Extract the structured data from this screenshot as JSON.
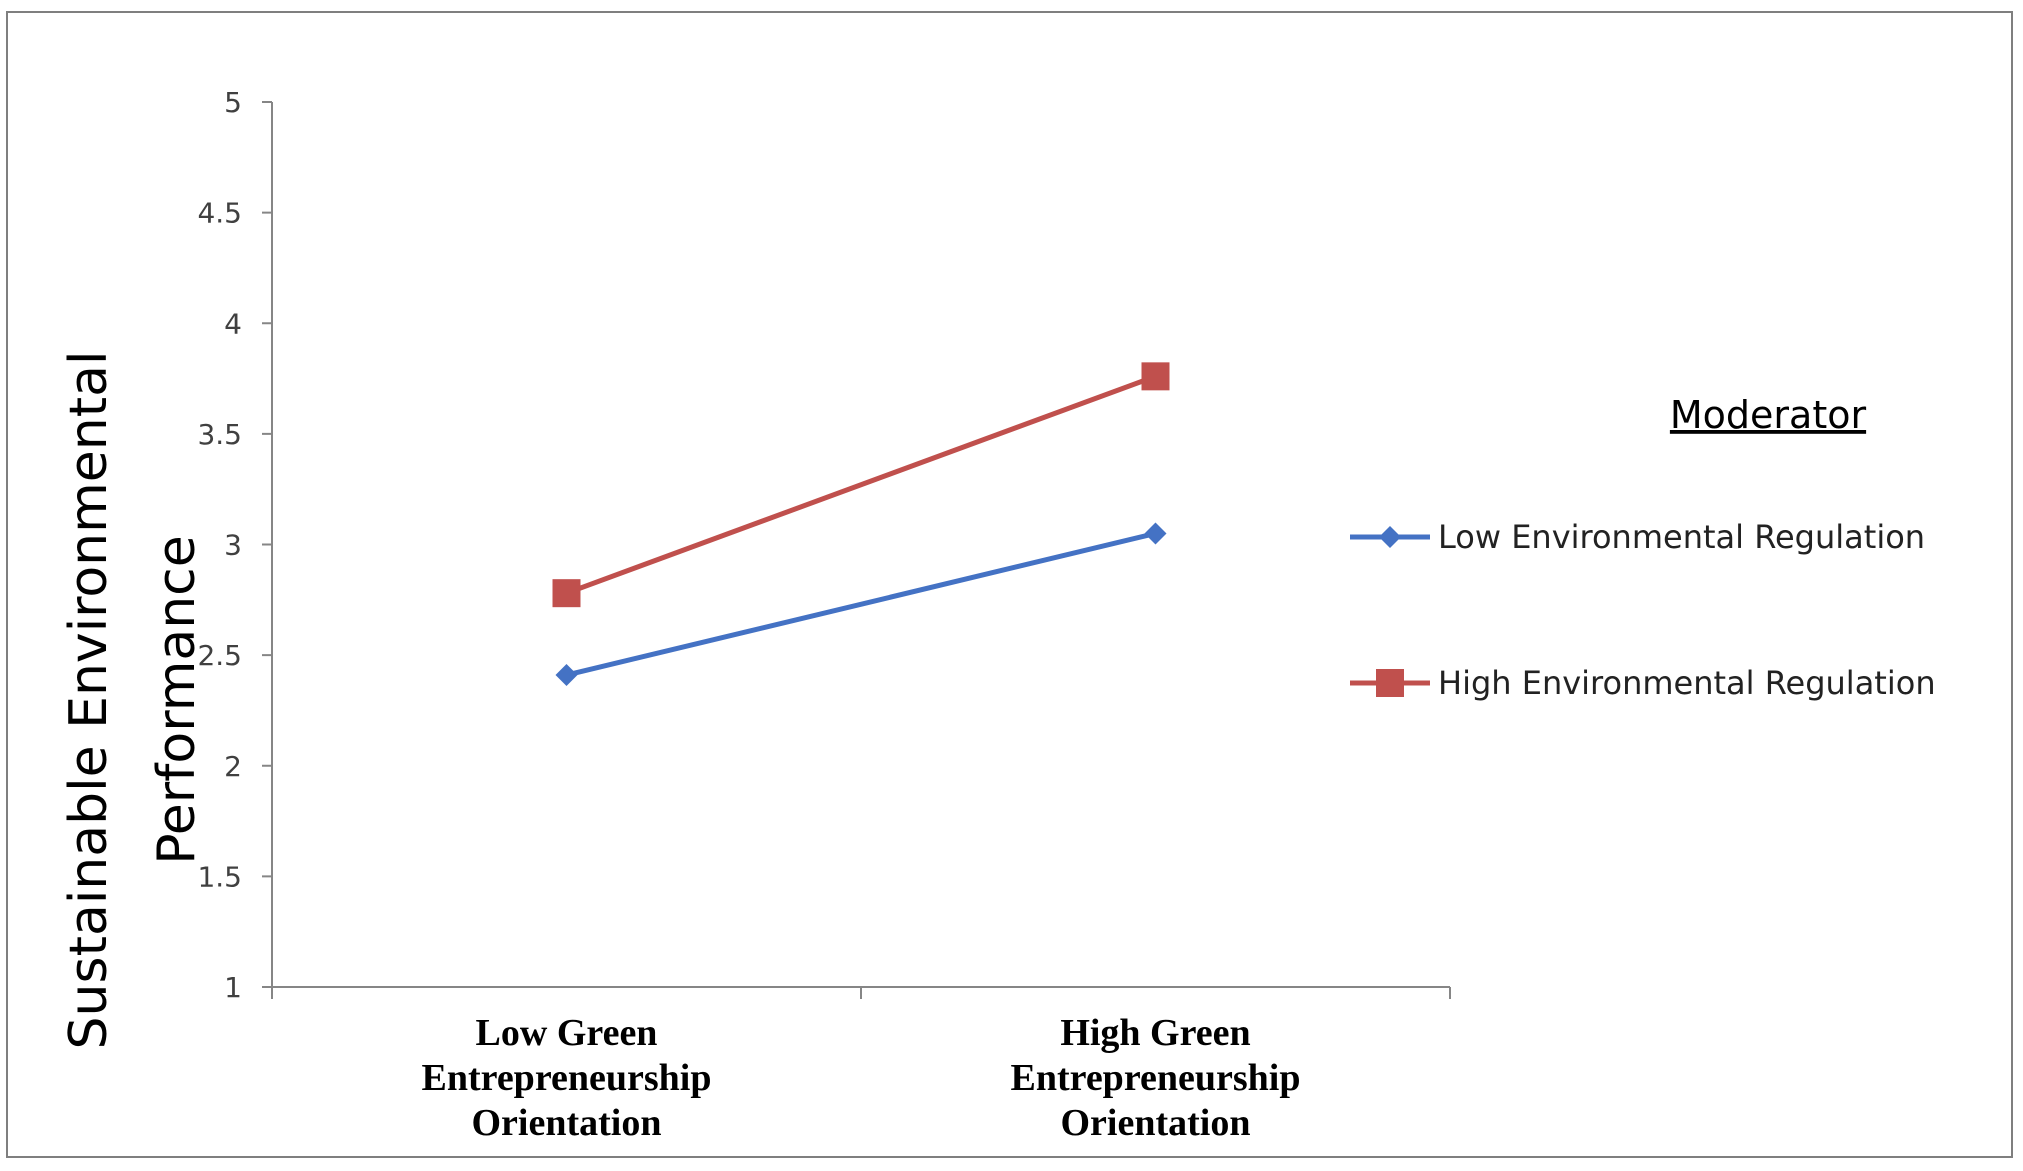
{
  "chart_data": {
    "type": "line",
    "title": "",
    "ylabel_lines": [
      "Sustainable Environmental",
      "Performance"
    ],
    "xlabel": "",
    "categories": [
      [
        "Low Green",
        "Entrepreneurship",
        "Orientation"
      ],
      [
        "High Green",
        "Entrepreneurship",
        "Orientation"
      ]
    ],
    "ylim": [
      1,
      5
    ],
    "yticks": [
      "1",
      "1.5",
      "2",
      "2.5",
      "3",
      "3.5",
      "4",
      "4.5",
      "5"
    ],
    "ytick_values": [
      1,
      1.5,
      2,
      2.5,
      3,
      3.5,
      4,
      4.5,
      5
    ],
    "legend_title": "Moderator",
    "legend_position": "right",
    "grid": false,
    "series": [
      {
        "name": "Low Environmental Regulation",
        "values": [
          2.41,
          3.05
        ],
        "color": "#4472c4",
        "marker": "diamond"
      },
      {
        "name": "High Environmental Regulation",
        "values": [
          2.78,
          3.76
        ],
        "color": "#c0504d",
        "marker": "square"
      }
    ]
  }
}
